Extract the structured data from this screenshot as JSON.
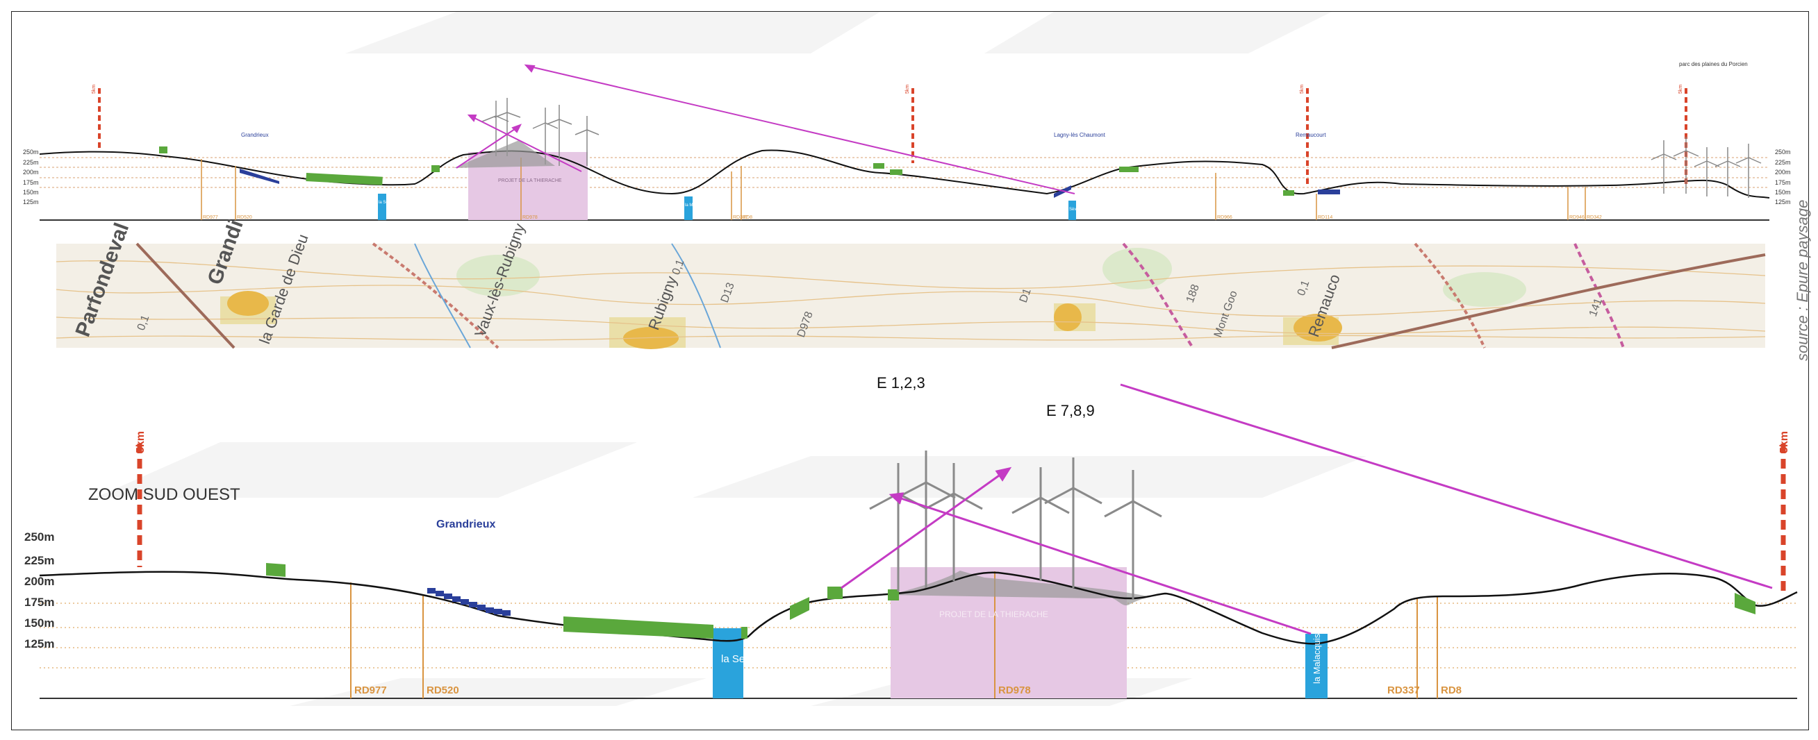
{
  "source": "source : Epure paysage",
  "overview": {
    "left_altitudes": [
      "250m",
      "225m",
      "200m",
      "175m",
      "150m",
      "125m"
    ],
    "right_altitudes": [
      "250m",
      "225m",
      "200m",
      "175m",
      "150m",
      "125m"
    ],
    "villages": [
      "Grandrieux",
      "Lagny-lès Chaumont",
      "Remaucourt"
    ],
    "parc_label": "parc des plaines du Porcien",
    "projet_label": "PROJET DE LA THIERACHE",
    "water": [
      "la Serre",
      "la Malacquise",
      "Sèvre"
    ],
    "roads": [
      "RD977",
      "RD520",
      "RD978",
      "RD337",
      "RD8",
      "RD966",
      "RD114",
      "RD946",
      "RD342"
    ],
    "distance_marker": "5km"
  },
  "map": {
    "labels": [
      "Parfondeval",
      "Grandi",
      "la Garde de Dieu",
      "Vaux-lès-Rubigny",
      "Rubigny",
      "D13",
      "D978",
      "0,1",
      "0,1",
      "D1",
      "Mont Goo",
      "188",
      "Remauco",
      "141",
      "0,1"
    ]
  },
  "zoom": {
    "title": "ZOOM SUD OUEST",
    "turbine_labels": [
      "E 1,2,3",
      "E 7,8,9"
    ],
    "distance_left": "5km",
    "distance_right": "5km",
    "altitudes": [
      "250m",
      "225m",
      "200m",
      "175m",
      "150m",
      "125m"
    ],
    "village": "Grandrieux",
    "projet_label": "PROJET DE LA THIERACHE",
    "water": [
      "la Serre",
      "la Malacquise"
    ],
    "roads": [
      "RD977",
      "RD520",
      "RD978",
      "RD337",
      "RD8"
    ]
  }
}
